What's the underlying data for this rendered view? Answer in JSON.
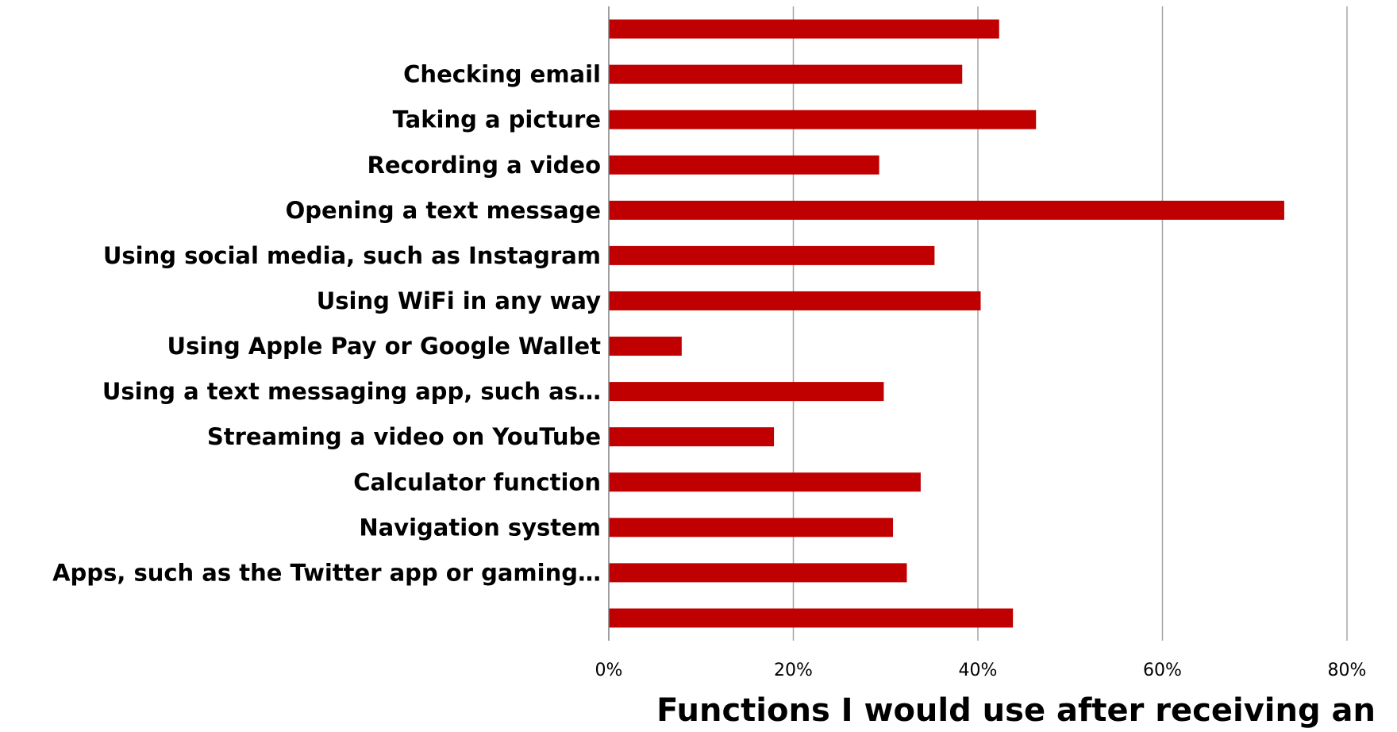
{
  "chart_data": {
    "type": "bar",
    "orientation": "horizontal",
    "categories": [
      "",
      "Checking email",
      "Taking a picture",
      "Recording a video",
      "Opening a text message",
      "Using social media, such as Instagram",
      "Using WiFi in any way",
      "Using Apple Pay or Google Wallet",
      "Using a text messaging app, such as…",
      "Streaming a video on YouTube",
      "Calculator function",
      "Navigation system",
      "Apps, such as the Twitter app or gaming…",
      ""
    ],
    "values": [
      42.3,
      38.3,
      46.3,
      29.3,
      73.2,
      35.3,
      40.3,
      7.9,
      29.8,
      17.9,
      33.8,
      30.8,
      32.3,
      43.8
    ],
    "xlim": [
      0,
      80
    ],
    "xticks": [
      "0%",
      "20%",
      "40%",
      "60%",
      "80%"
    ],
    "xlabel": "Functions I would use after receiving an",
    "ylabel": "",
    "title": "",
    "grid": "vertical",
    "bar_color": "#C00000"
  }
}
